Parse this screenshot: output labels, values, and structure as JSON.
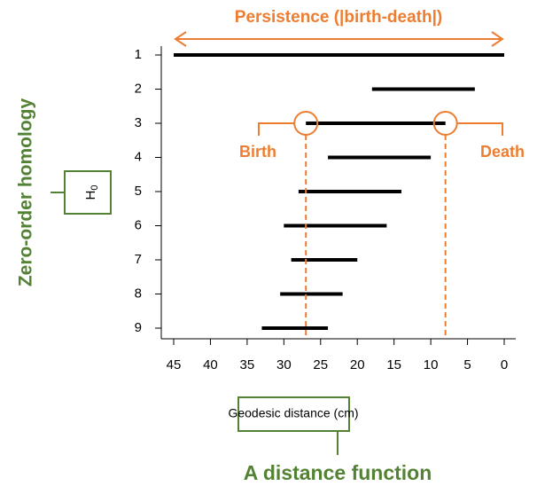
{
  "chart_data": {
    "type": "barcode",
    "title": "Persistence (|birth-death|)",
    "categories": [
      "1",
      "2",
      "3",
      "4",
      "5",
      "6",
      "7",
      "8",
      "9"
    ],
    "births": [
      45,
      18,
      27,
      24,
      28,
      30,
      29,
      30.5,
      33
    ],
    "deaths": [
      0,
      4,
      8,
      10,
      14,
      16,
      20,
      22,
      24
    ],
    "color": "#000000",
    "xlim": [
      45,
      0
    ],
    "xticks": [
      45,
      40,
      35,
      30,
      25,
      20,
      15,
      10,
      5,
      0
    ],
    "x_label": "Geodesic distance (cm)",
    "annotations": {
      "birth": "Birth",
      "death": "Death",
      "homology_base": "H",
      "homology_subscript": "0",
      "homology_name": "Zero-order homology",
      "distance_function": "A distance function"
    },
    "accent_color": "#ED7D31",
    "label_color": "#548235"
  }
}
